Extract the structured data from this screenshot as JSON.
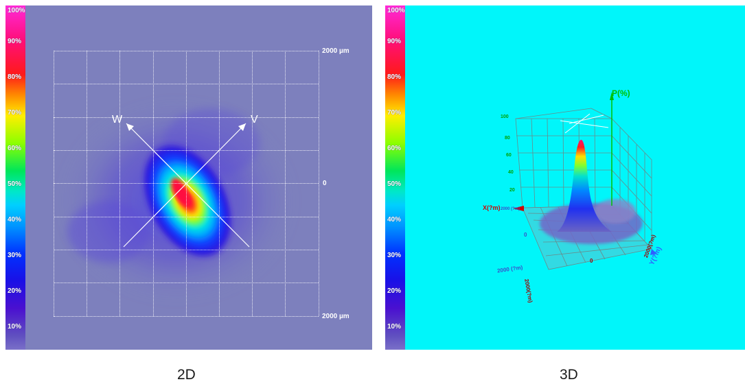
{
  "scale": {
    "labels": [
      "100%",
      "90%",
      "80%",
      "70%",
      "60%",
      "50%",
      "40%",
      "30%",
      "20%",
      "10%"
    ]
  },
  "view2d": {
    "axis_top": "2000 µm",
    "axis_mid": "0",
    "axis_bottom": "2000 µm",
    "arrow_w": "W",
    "arrow_v": "V",
    "caption": "2D"
  },
  "view3d": {
    "z_axis": "P(%)",
    "z_ticks": [
      "100",
      "80",
      "60",
      "40",
      "20"
    ],
    "x_axis": "X(?m)",
    "y_axis": "Y(?m)",
    "label_2000_left": "2000 (?m)",
    "label_0_left": "0",
    "label_2000_bottom": "2000(?m)",
    "label_0_bottom": "0",
    "label_2000_right": "2000(?m)",
    "label_x_small": "2000 (?m)",
    "caption": "3D"
  },
  "colors": {
    "panel2d_bg": "#7d80bd",
    "panel3d_bg": "#00f6fa"
  }
}
